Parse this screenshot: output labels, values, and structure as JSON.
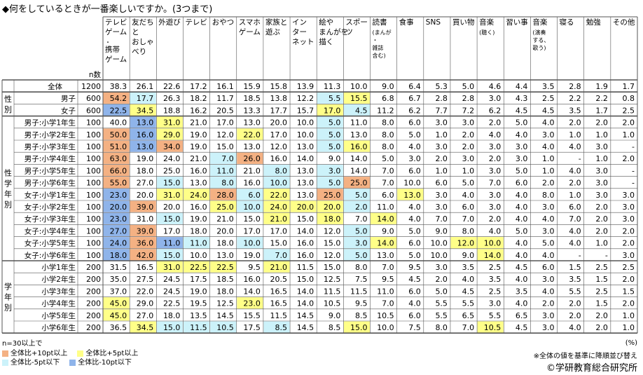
{
  "title": "◆何をしているときが一番楽しいですか。(3つまで)",
  "unit": "(%)",
  "note": "※全体の値を基準に降順並び替え",
  "copyright": "©学研教育総合研究所",
  "colors": {
    "plus10": "#f4b183",
    "plus5": "#ffff88",
    "minus5": "#ccf2fa",
    "minus10": "#8fb4ea"
  },
  "legend": {
    "condition": "n=30以上で",
    "items": [
      {
        "key": "plus10",
        "label": "全体比+10pt以上"
      },
      {
        "key": "plus5",
        "label": "全体比+5pt以上"
      },
      {
        "key": "minus5",
        "label": "全体比-5pt以下"
      },
      {
        "key": "minus10",
        "label": "全体比-10pt以下"
      }
    ]
  },
  "chart_data": {
    "type": "table",
    "n_label": "n数",
    "columns": [
      [
        "テレビ",
        "ゲーム",
        "・",
        "携帯",
        "ゲーム"
      ],
      [
        "友だち",
        "と",
        "おしゃ",
        "べり"
      ],
      [
        "外遊び"
      ],
      [
        "テレビ"
      ],
      [
        "おやつ"
      ],
      [
        "スマホ",
        "ゲーム"
      ],
      [
        "家族と",
        "遊ぶ"
      ],
      [
        "イン",
        "ター",
        "ネット"
      ],
      [
        "絵や",
        "まんがを",
        "描く"
      ],
      [
        "スポー",
        "ツ"
      ],
      [
        "読書",
        "(まんが",
        "・",
        "雑誌",
        "含む)"
      ],
      [
        "食事"
      ],
      [
        "SNS"
      ],
      [
        "買い物"
      ],
      [
        "音楽",
        "(聴く)"
      ],
      [
        "習い事"
      ],
      [
        "音楽",
        "(演奏",
        "する、",
        "歌う)"
      ],
      [
        "寝る"
      ],
      [
        "勉強"
      ],
      [
        "その他"
      ]
    ],
    "groups": [
      {
        "label": "",
        "rows": [
          0
        ]
      },
      {
        "label": "性別",
        "rows": [
          1,
          2
        ]
      },
      {
        "label": "性学年別",
        "rows": [
          3,
          4,
          5,
          6,
          7,
          8,
          9,
          10,
          11,
          12,
          13,
          14
        ]
      },
      {
        "label": "学年別",
        "rows": [
          15,
          16,
          17,
          18,
          19,
          20
        ]
      }
    ],
    "rows": [
      {
        "label": "全体",
        "n": "1200",
        "values": [
          "38.3",
          "26.1",
          "22.6",
          "17.2",
          "16.1",
          "15.9",
          "15.8",
          "13.9",
          "11.3",
          "10.0",
          "9.0",
          "6.4",
          "5.3",
          "5.0",
          "4.6",
          "4.4",
          "3.5",
          "2.8",
          "1.9",
          "1.7"
        ],
        "hl": [
          "",
          "",
          "",
          "",
          "",
          "",
          "",
          "",
          "",
          "",
          "",
          "",
          "",
          "",
          "",
          "",
          "",
          "",
          "",
          ""
        ]
      },
      {
        "label": "男子",
        "n": "600",
        "values": [
          "54.2",
          "17.7",
          "26.3",
          "18.2",
          "11.7",
          "18.5",
          "13.8",
          "12.2",
          "5.5",
          "15.5",
          "6.8",
          "6.7",
          "2.8",
          "2.8",
          "3.0",
          "4.3",
          "2.5",
          "2.2",
          "2.2",
          "0.8"
        ],
        "hl": [
          "plus10",
          "minus5",
          "",
          "",
          "",
          "",
          "",
          "",
          "minus5",
          "plus5",
          "",
          "",
          "",
          "",
          "",
          "",
          "",
          "",
          "",
          ""
        ]
      },
      {
        "label": "女子",
        "n": "600",
        "values": [
          "22.5",
          "34.5",
          "18.8",
          "16.2",
          "20.5",
          "13.3",
          "17.7",
          "15.7",
          "17.0",
          "4.5",
          "11.2",
          "6.2",
          "7.7",
          "7.2",
          "6.2",
          "4.5",
          "4.5",
          "3.5",
          "1.7",
          "2.5"
        ],
        "hl": [
          "minus10",
          "plus5",
          "",
          "",
          "",
          "",
          "",
          "",
          "plus5",
          "minus5",
          "",
          "",
          "",
          "",
          "",
          "",
          "",
          "",
          "",
          ""
        ]
      },
      {
        "label": "男子:小学1年生",
        "n": "100",
        "values": [
          "40.0",
          "13.0",
          "31.0",
          "21.0",
          "17.0",
          "13.0",
          "20.0",
          "10.0",
          "5.0",
          "11.0",
          "8.0",
          "6.0",
          "3.0",
          "3.0",
          "2.0",
          "5.0",
          "4.0",
          "2.0",
          "2.0",
          "2.0"
        ],
        "hl": [
          "",
          "minus10",
          "plus5",
          "",
          "",
          "",
          "",
          "",
          "minus5",
          "",
          "",
          "",
          "",
          "",
          "",
          "",
          "",
          "",
          "",
          ""
        ]
      },
      {
        "label": "男子:小学2年生",
        "n": "100",
        "values": [
          "50.0",
          "16.0",
          "29.0",
          "19.0",
          "12.0",
          "22.0",
          "17.0",
          "10.0",
          "5.0",
          "13.0",
          "8.0",
          "5.0",
          "1.0",
          "2.0",
          "4.0",
          "4.0",
          "3.0",
          "1.0",
          "1.0",
          "1.0"
        ],
        "hl": [
          "plus10",
          "minus10",
          "plus5",
          "",
          "",
          "plus5",
          "",
          "",
          "minus5",
          "",
          "",
          "",
          "",
          "",
          "",
          "",
          "",
          "",
          "",
          ""
        ]
      },
      {
        "label": "男子:小学3年生",
        "n": "100",
        "values": [
          "51.0",
          "13.0",
          "34.0",
          "19.0",
          "15.0",
          "13.0",
          "12.0",
          "13.0",
          "5.0",
          "16.0",
          "8.0",
          "4.0",
          "3.0",
          "2.0",
          "3.0",
          "3.0",
          "4.0",
          "4.0",
          "3.0",
          "-"
        ],
        "hl": [
          "plus10",
          "minus10",
          "plus10",
          "",
          "",
          "",
          "",
          "",
          "minus5",
          "plus5",
          "",
          "",
          "",
          "",
          "",
          "",
          "",
          "",
          "",
          ""
        ]
      },
      {
        "label": "男子:小学4年生",
        "n": "100",
        "values": [
          "63.0",
          "19.0",
          "24.0",
          "21.0",
          "7.0",
          "26.0",
          "16.0",
          "14.0",
          "9.0",
          "14.0",
          "5.0",
          "3.0",
          "2.0",
          "3.0",
          "2.0",
          "3.0",
          "1.0",
          "-",
          "1.0",
          "2.0"
        ],
        "hl": [
          "plus10",
          "",
          "",
          "",
          "minus5",
          "plus10",
          "",
          "",
          "",
          "",
          "",
          "",
          "",
          "",
          "",
          "",
          "",
          "",
          "",
          ""
        ]
      },
      {
        "label": "男子:小学5年生",
        "n": "100",
        "values": [
          "66.0",
          "18.0",
          "25.0",
          "16.0",
          "11.0",
          "21.0",
          "8.0",
          "13.0",
          "3.0",
          "14.0",
          "7.0",
          "6.0",
          "1.0",
          "1.0",
          "3.0",
          "5.0",
          "1.0",
          "4.0",
          "3.0",
          "-"
        ],
        "hl": [
          "plus10",
          "",
          "",
          "",
          "minus5",
          "",
          "minus5",
          "",
          "minus5",
          "",
          "",
          "",
          "",
          "",
          "",
          "",
          "",
          "",
          "",
          ""
        ]
      },
      {
        "label": "男子:小学6年生",
        "n": "100",
        "values": [
          "55.0",
          "27.0",
          "15.0",
          "13.0",
          "8.0",
          "16.0",
          "10.0",
          "13.0",
          "5.0",
          "25.0",
          "7.0",
          "10.0",
          "6.0",
          "5.0",
          "7.0",
          "6.0",
          "2.0",
          "2.0",
          "3.0",
          "-"
        ],
        "hl": [
          "plus10",
          "",
          "minus5",
          "",
          "minus5",
          "",
          "minus5",
          "",
          "minus5",
          "plus10",
          "",
          "",
          "",
          "",
          "",
          "",
          "",
          "",
          "",
          ""
        ]
      },
      {
        "label": "女子:小学1年生",
        "n": "100",
        "values": [
          "23.0",
          "20.0",
          "31.0",
          "24.0",
          "28.0",
          "6.0",
          "22.0",
          "13.0",
          "25.0",
          "5.0",
          "6.0",
          "13.0",
          "3.0",
          "4.0",
          "3.0",
          "4.0",
          "8.0",
          "1.0",
          "3.0",
          "3.0"
        ],
        "hl": [
          "minus10",
          "",
          "plus5",
          "plus5",
          "plus10",
          "minus5",
          "plus5",
          "",
          "plus10",
          "minus5",
          "",
          "plus5",
          "",
          "",
          "",
          "",
          "",
          "",
          "",
          ""
        ]
      },
      {
        "label": "女子:小学2年生",
        "n": "100",
        "values": [
          "20.0",
          "39.0",
          "20.0",
          "16.0",
          "25.0",
          "10.0",
          "24.0",
          "20.0",
          "20.0",
          "2.0",
          "11.0",
          "4.0",
          "3.0",
          "6.0",
          "3.0",
          "4.0",
          "3.0",
          "6.0",
          "2.0",
          "3.0"
        ],
        "hl": [
          "minus10",
          "plus10",
          "",
          "",
          "plus5",
          "minus5",
          "plus5",
          "plus5",
          "plus5",
          "minus5",
          "",
          "",
          "",
          "",
          "",
          "",
          "",
          "",
          "",
          ""
        ]
      },
      {
        "label": "女子:小学3年生",
        "n": "100",
        "values": [
          "23.0",
          "31.0",
          "15.0",
          "19.0",
          "21.0",
          "15.0",
          "21.0",
          "15.0",
          "18.0",
          "7.0",
          "14.0",
          "4.0",
          "7.0",
          "7.0",
          "2.0",
          "4.0",
          "4.0",
          "7.0",
          "2.0",
          "3.0"
        ],
        "hl": [
          "minus10",
          "",
          "minus5",
          "",
          "",
          "",
          "plus5",
          "",
          "plus5",
          "",
          "plus5",
          "",
          "",
          "",
          "",
          "",
          "",
          "",
          "",
          ""
        ]
      },
      {
        "label": "女子:小学4年生",
        "n": "100",
        "values": [
          "27.0",
          "39.0",
          "17.0",
          "18.0",
          "20.0",
          "17.0",
          "17.0",
          "14.0",
          "12.0",
          "5.0",
          "9.0",
          "5.0",
          "9.0",
          "8.0",
          "4.0",
          "5.0",
          "3.0",
          "4.0",
          "2.0",
          "2.0"
        ],
        "hl": [
          "minus10",
          "plus10",
          "",
          "",
          "",
          "",
          "",
          "",
          "",
          "minus5",
          "",
          "",
          "",
          "",
          "",
          "",
          "",
          "",
          "",
          ""
        ]
      },
      {
        "label": "女子:小学5年生",
        "n": "100",
        "values": [
          "24.0",
          "36.0",
          "11.0",
          "11.0",
          "18.0",
          "10.0",
          "15.0",
          "16.0",
          "15.0",
          "3.0",
          "14.0",
          "6.0",
          "10.0",
          "12.0",
          "10.0",
          "4.0",
          "5.0",
          "4.0",
          "1.0",
          "2.0"
        ],
        "hl": [
          "minus10",
          "plus10",
          "minus10",
          "minus5",
          "",
          "minus5",
          "",
          "",
          "",
          "minus5",
          "plus5",
          "",
          "",
          "plus5",
          "plus5",
          "",
          "",
          "",
          "",
          ""
        ]
      },
      {
        "label": "女子:小学6年生",
        "n": "100",
        "values": [
          "18.0",
          "42.0",
          "15.0",
          "10.0",
          "13.0",
          "19.0",
          "7.0",
          "16.0",
          "12.0",
          "5.0",
          "13.0",
          "5.0",
          "10.0",
          "9.0",
          "14.0",
          "4.0",
          "4.0",
          "-",
          "-",
          "3.0"
        ],
        "hl": [
          "minus10",
          "plus10",
          "minus5",
          "",
          "",
          "",
          "minus5",
          "",
          "",
          "minus5",
          "",
          "",
          "",
          "",
          "plus5",
          "",
          "",
          "",
          "",
          ""
        ]
      },
      {
        "label": "小学1年生",
        "n": "200",
        "values": [
          "31.5",
          "16.5",
          "31.0",
          "22.5",
          "22.5",
          "9.5",
          "21.0",
          "11.5",
          "15.0",
          "8.0",
          "7.0",
          "9.5",
          "3.0",
          "3.5",
          "2.5",
          "4.5",
          "6.0",
          "1.5",
          "2.5",
          "2.5"
        ],
        "hl": [
          "",
          "",
          "plus5",
          "plus5",
          "plus5",
          "",
          "plus5",
          "",
          "",
          "",
          "",
          "",
          "",
          "",
          "",
          "",
          "",
          "",
          "",
          ""
        ]
      },
      {
        "label": "小学2年生",
        "n": "200",
        "values": [
          "35.0",
          "27.5",
          "24.5",
          "17.5",
          "18.5",
          "16.0",
          "20.5",
          "15.0",
          "12.5",
          "7.5",
          "9.5",
          "4.5",
          "2.0",
          "4.0",
          "3.5",
          "4.0",
          "3.0",
          "3.5",
          "1.5",
          "2.0"
        ],
        "hl": [
          "",
          "",
          "",
          "",
          "",
          "",
          "",
          "",
          "",
          "",
          "",
          "",
          "",
          "",
          "",
          "",
          "",
          "",
          "",
          ""
        ]
      },
      {
        "label": "小学3年生",
        "n": "200",
        "values": [
          "37.0",
          "22.0",
          "24.5",
          "19.0",
          "18.0",
          "14.0",
          "16.5",
          "14.0",
          "11.5",
          "11.5",
          "11.0",
          "6.0",
          "5.0",
          "4.5",
          "2.5",
          "3.5",
          "4.0",
          "5.5",
          "2.5",
          "1.5"
        ],
        "hl": [
          "",
          "",
          "",
          "",
          "",
          "",
          "",
          "",
          "",
          "",
          "",
          "",
          "",
          "",
          "",
          "",
          "",
          "",
          "",
          ""
        ]
      },
      {
        "label": "小学4年生",
        "n": "200",
        "values": [
          "45.0",
          "29.0",
          "22.5",
          "19.5",
          "12.5",
          "23.0",
          "16.5",
          "14.0",
          "10.5",
          "9.5",
          "7.0",
          "4.0",
          "5.5",
          "5.5",
          "3.0",
          "4.0",
          "2.0",
          "2.0",
          "1.5",
          "2.0"
        ],
        "hl": [
          "plus5",
          "",
          "",
          "",
          "",
          "plus5",
          "",
          "",
          "",
          "",
          "",
          "",
          "",
          "",
          "",
          "",
          "",
          "",
          "",
          ""
        ]
      },
      {
        "label": "小学5年生",
        "n": "200",
        "values": [
          "45.0",
          "27.0",
          "18.0",
          "13.5",
          "14.5",
          "15.5",
          "11.5",
          "14.5",
          "9.0",
          "8.5",
          "10.5",
          "6.0",
          "5.5",
          "6.5",
          "5.5",
          "6.5",
          "3.0",
          "2.0",
          "2.0",
          "1.0"
        ],
        "hl": [
          "plus5",
          "",
          "",
          "",
          "",
          "",
          "",
          "",
          "",
          "",
          "",
          "",
          "",
          "",
          "",
          "",
          "",
          "",
          "",
          ""
        ]
      },
      {
        "label": "小学6年生",
        "n": "200",
        "values": [
          "36.5",
          "34.5",
          "15.0",
          "11.5",
          "10.5",
          "17.5",
          "8.5",
          "14.5",
          "8.5",
          "15.0",
          "10.0",
          "7.5",
          "8.0",
          "7.0",
          "10.5",
          "4.5",
          "3.0",
          "4.0",
          "2.0",
          "1.0"
        ],
        "hl": [
          "",
          "plus5",
          "minus5",
          "minus5",
          "minus5",
          "",
          "minus5",
          "",
          "",
          "plus5",
          "",
          "",
          "",
          "",
          "plus5",
          "",
          "",
          "",
          "",
          ""
        ]
      }
    ]
  }
}
